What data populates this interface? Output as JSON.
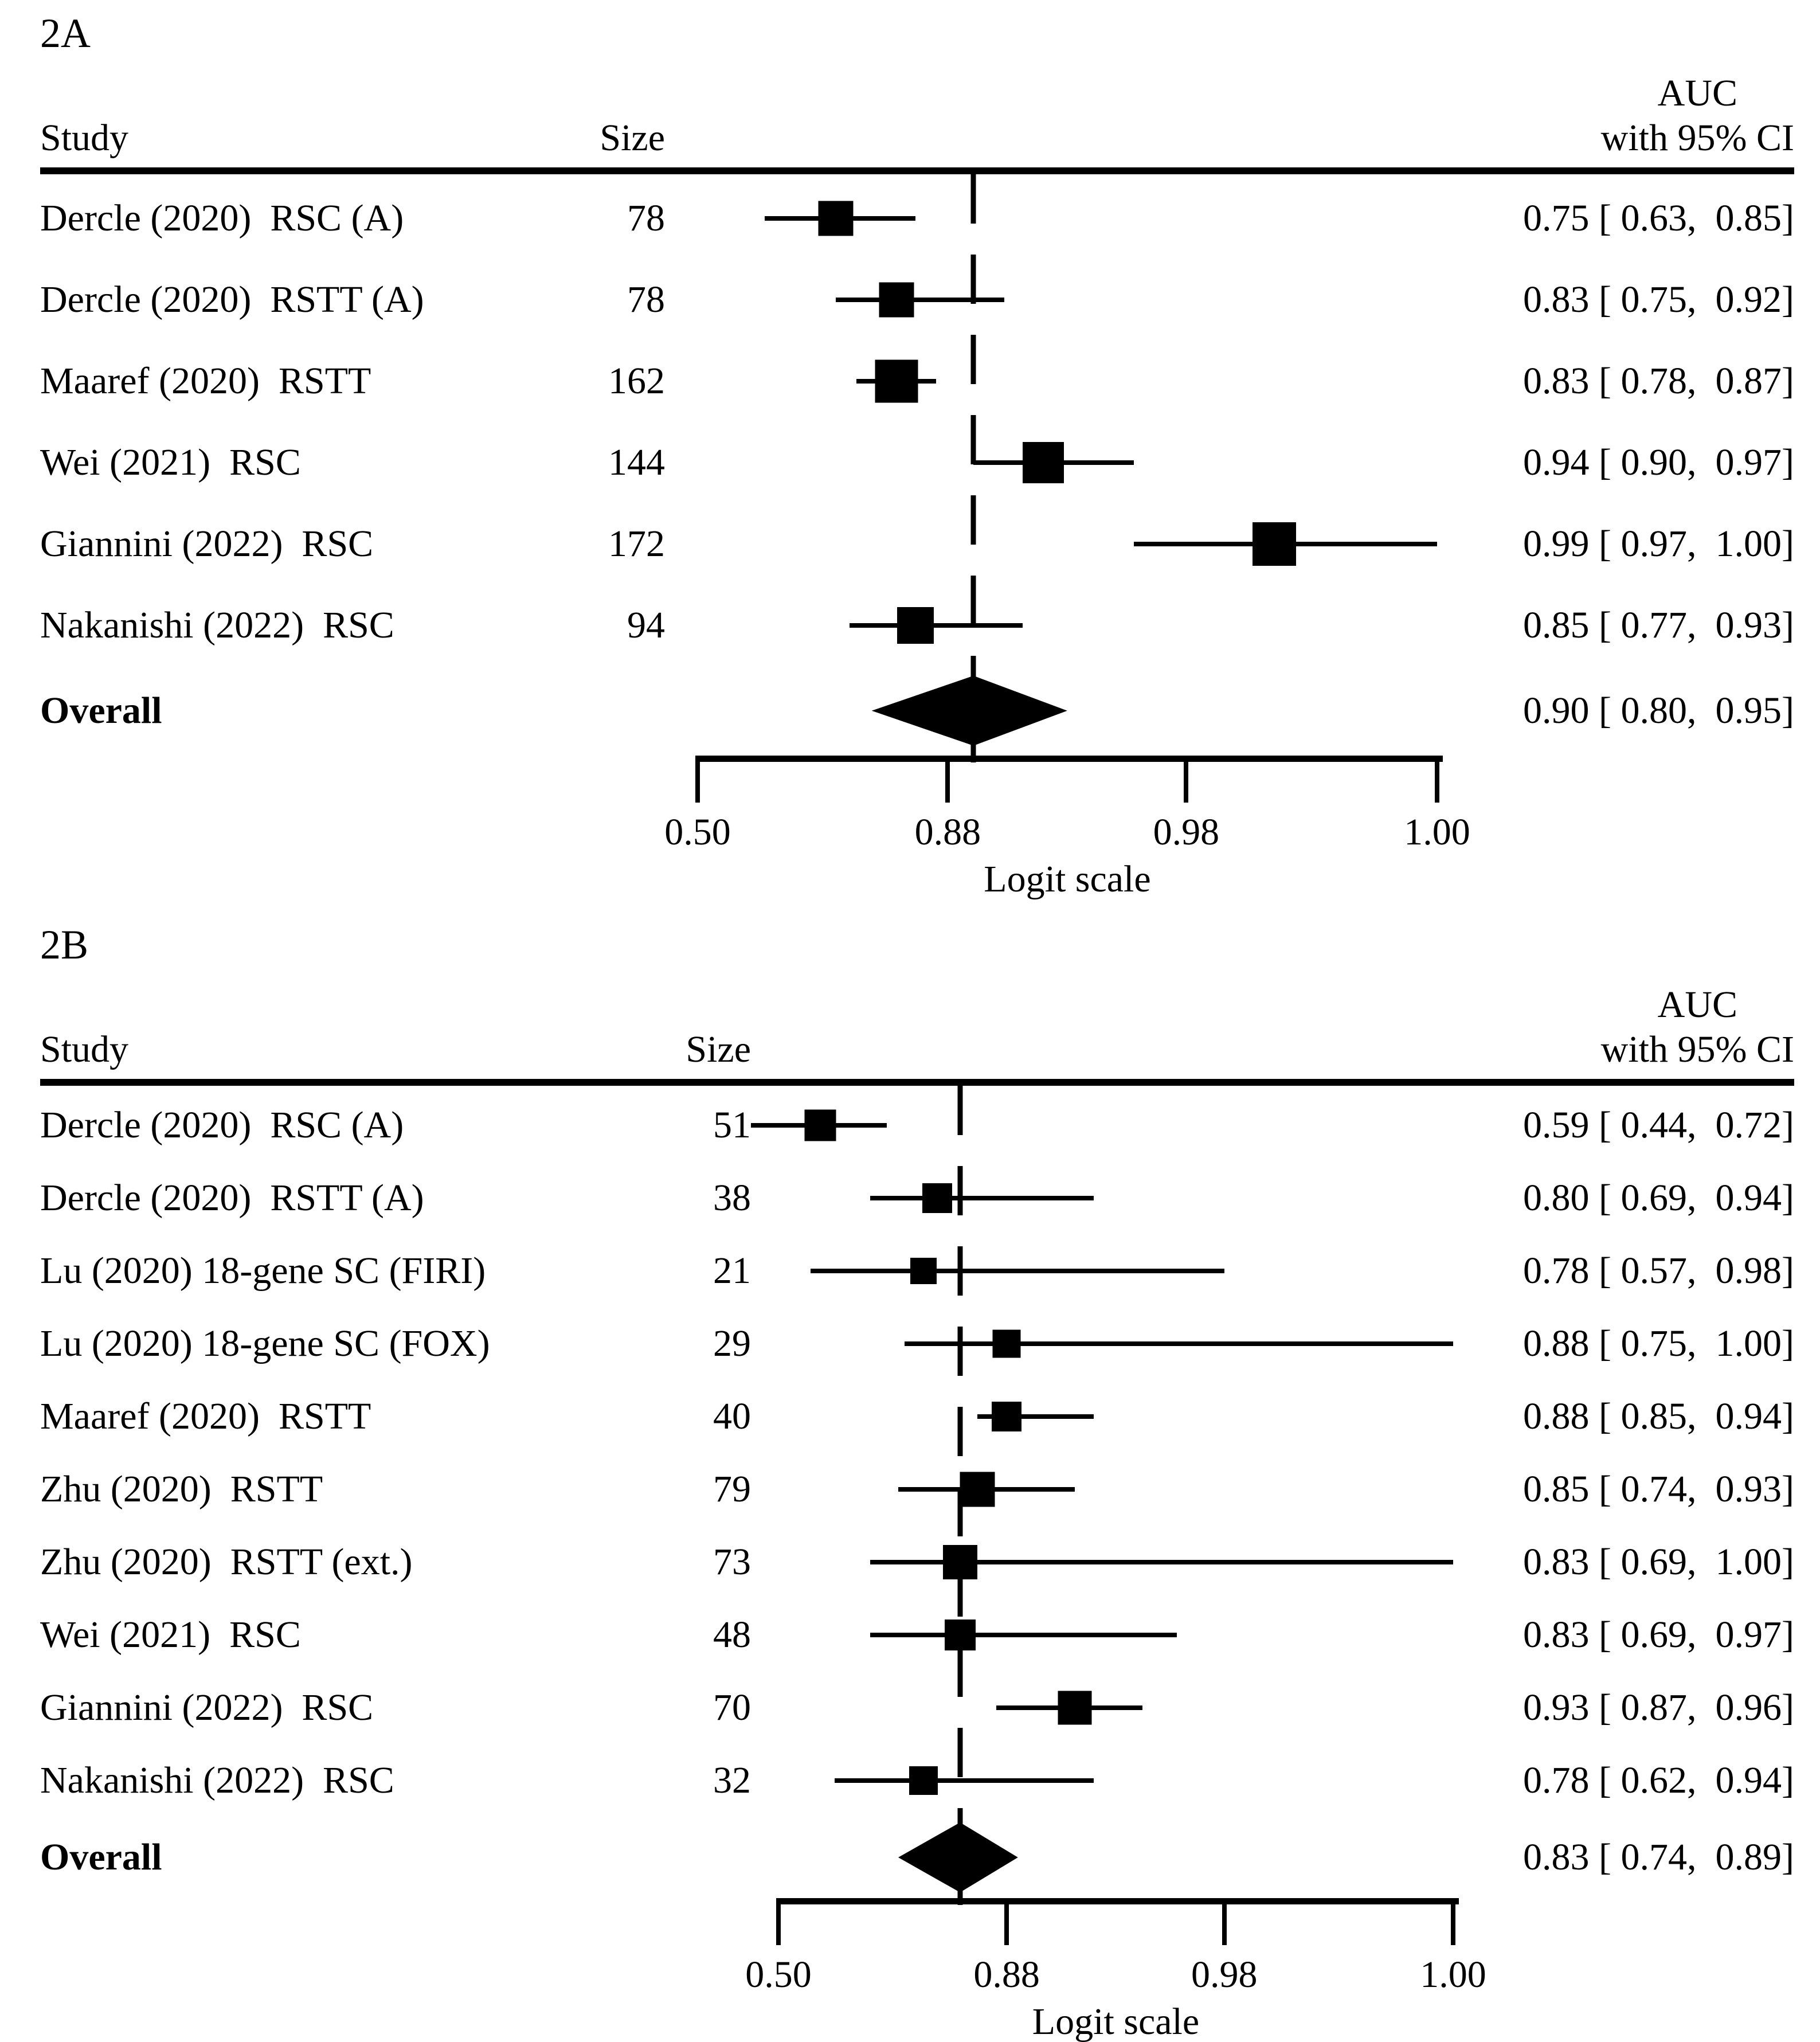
{
  "chart_data": [
    {
      "type": "forest",
      "panel_label": "2A",
      "col_study": "Study",
      "col_size": "Size",
      "effect_header_line1": "AUC",
      "effect_header_line2": "with 95% CI",
      "xlabel": "Logit scale",
      "x_scale": "logit",
      "x_ticks": [
        0.5,
        0.88,
        0.98,
        1.0
      ],
      "x_tick_labels": [
        "0.50",
        "0.88",
        "0.98",
        "1.00"
      ],
      "x_range_note": "axis linear in logit(p); ticks equally spaced from 0.50 to 1.00",
      "studies": [
        {
          "label": "Dercle (2020)  RSC (A)",
          "size": 78,
          "auc": 0.75,
          "lo": 0.63,
          "hi": 0.85,
          "ci_text": "0.75 [ 0.63,  0.85]"
        },
        {
          "label": "Dercle (2020)  RSTT (A)",
          "size": 78,
          "auc": 0.83,
          "lo": 0.75,
          "hi": 0.92,
          "ci_text": "0.83 [ 0.75,  0.92]"
        },
        {
          "label": "Maaref (2020)  RSTT",
          "size": 162,
          "auc": 0.83,
          "lo": 0.78,
          "hi": 0.87,
          "ci_text": "0.83 [ 0.78,  0.87]"
        },
        {
          "label": "Wei (2021)  RSC",
          "size": 144,
          "auc": 0.94,
          "lo": 0.9,
          "hi": 0.97,
          "ci_text": "0.94 [ 0.90,  0.97]"
        },
        {
          "label": "Giannini (2022)  RSC",
          "size": 172,
          "auc": 0.99,
          "lo": 0.97,
          "hi": 1.0,
          "ci_text": "0.99 [ 0.97,  1.00]"
        },
        {
          "label": "Nakanishi (2022)  RSC",
          "size": 94,
          "auc": 0.85,
          "lo": 0.77,
          "hi": 0.93,
          "ci_text": "0.85 [ 0.77,  0.93]"
        }
      ],
      "overall": {
        "label": "Overall",
        "auc": 0.9,
        "lo": 0.8,
        "hi": 0.95,
        "ci_text": "0.90 [ 0.80,  0.95]"
      }
    },
    {
      "type": "forest",
      "panel_label": "2B",
      "col_study": "Study",
      "col_size": "Size",
      "effect_header_line1": "AUC",
      "effect_header_line2": "with 95% CI",
      "xlabel": "Logit scale",
      "x_scale": "logit",
      "x_ticks": [
        0.5,
        0.88,
        0.98,
        1.0
      ],
      "x_tick_labels": [
        "0.50",
        "0.88",
        "0.98",
        "1.00"
      ],
      "x_range_note": "axis linear in logit(p); ticks equally spaced from 0.50 to 1.00",
      "studies": [
        {
          "label": "Dercle (2020)  RSC (A)",
          "size": 51,
          "auc": 0.59,
          "lo": 0.44,
          "hi": 0.72,
          "ci_text": "0.59 [ 0.44,  0.72]"
        },
        {
          "label": "Dercle (2020)  RSTT (A)",
          "size": 38,
          "auc": 0.8,
          "lo": 0.69,
          "hi": 0.94,
          "ci_text": "0.80 [ 0.69,  0.94]"
        },
        {
          "label": "Lu (2020) 18-gene SC (FIRI)",
          "size": 21,
          "auc": 0.78,
          "lo": 0.57,
          "hi": 0.98,
          "ci_text": "0.78 [ 0.57,  0.98]"
        },
        {
          "label": "Lu (2020) 18-gene SC (FOX)",
          "size": 29,
          "auc": 0.88,
          "lo": 0.75,
          "hi": 1.0,
          "ci_text": "0.88 [ 0.75,  1.00]"
        },
        {
          "label": "Maaref (2020)  RSTT",
          "size": 40,
          "auc": 0.88,
          "lo": 0.85,
          "hi": 0.94,
          "ci_text": "0.88 [ 0.85,  0.94]"
        },
        {
          "label": "Zhu (2020)  RSTT",
          "size": 79,
          "auc": 0.85,
          "lo": 0.74,
          "hi": 0.93,
          "ci_text": "0.85 [ 0.74,  0.93]"
        },
        {
          "label": "Zhu (2020)  RSTT (ext.)",
          "size": 73,
          "auc": 0.83,
          "lo": 0.69,
          "hi": 1.0,
          "ci_text": "0.83 [ 0.69,  1.00]"
        },
        {
          "label": "Wei (2021)  RSC",
          "size": 48,
          "auc": 0.83,
          "lo": 0.69,
          "hi": 0.97,
          "ci_text": "0.83 [ 0.69,  0.97]"
        },
        {
          "label": "Giannini (2022)  RSC",
          "size": 70,
          "auc": 0.93,
          "lo": 0.87,
          "hi": 0.96,
          "ci_text": "0.93 [ 0.87,  0.96]"
        },
        {
          "label": "Nakanishi (2022)  RSC",
          "size": 32,
          "auc": 0.78,
          "lo": 0.62,
          "hi": 0.94,
          "ci_text": "0.78 [ 0.62,  0.94]"
        }
      ],
      "overall": {
        "label": "Overall",
        "auc": 0.83,
        "lo": 0.74,
        "hi": 0.89,
        "ci_text": "0.83 [ 0.74,  0.89]"
      }
    }
  ]
}
